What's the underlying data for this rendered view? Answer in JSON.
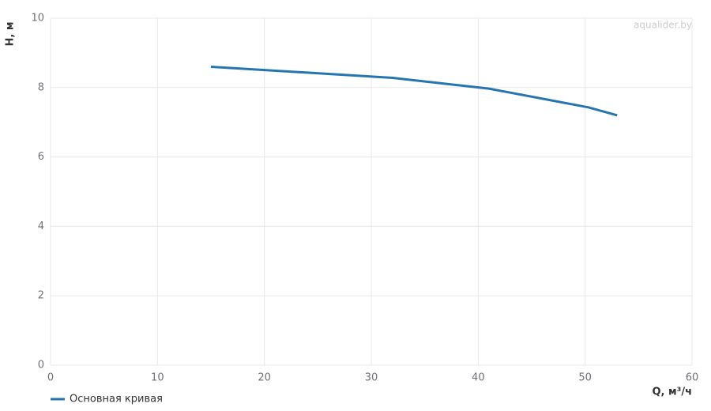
{
  "chart_data": {
    "type": "line",
    "watermark": "aqualider.by",
    "x_label": "Q, м³/ч",
    "y_label": "H, м",
    "x": [
      15,
      32,
      41,
      50.3,
      53
    ],
    "series": [
      {
        "name": "Основная кривая",
        "color": "#2576b0",
        "values": [
          8.6,
          8.28,
          7.97,
          7.43,
          7.2
        ]
      }
    ],
    "xlim": [
      0,
      60
    ],
    "xticks": [
      0,
      10,
      20,
      30,
      40,
      50,
      60
    ],
    "ylim": [
      0,
      10
    ],
    "yticks": [
      0,
      2,
      4,
      6,
      8,
      10
    ],
    "grid": true,
    "legend": "bottom-left"
  }
}
